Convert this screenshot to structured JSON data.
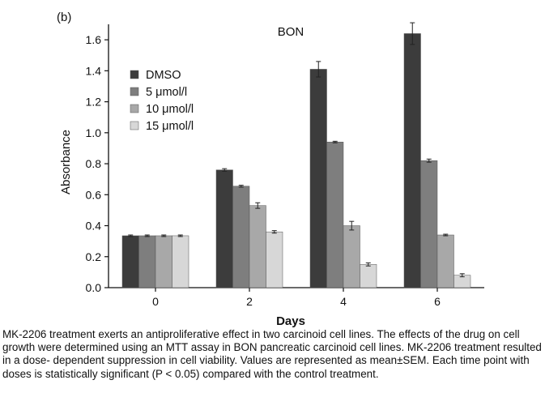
{
  "panel_label": "(b)",
  "caption": "MK-2206 treatment exerts an antiproliferative effect in two carcinoid cell lines. The effects of the drug on cell growth were determined using an MTT assay in BON pancreatic carcinoid cell lines. MK-2206 treatment resulted in a dose- dependent suppression in cell viability. Values are represented as mean±SEM. Each time point with doses is statistically significant (P < 0.05) compared with the control treatment.",
  "chart_data": {
    "type": "bar",
    "title": "BON",
    "xlabel": "Days",
    "ylabel": "Absorbance",
    "categories": [
      "0",
      "2",
      "4",
      "6"
    ],
    "ylim": [
      0,
      1.7
    ],
    "yticks": [
      "0.0",
      "0.2",
      "0.4",
      "0.6",
      "0.8",
      "1.0",
      "1.2",
      "1.4",
      "1.6"
    ],
    "grid": false,
    "legend_position": "top-left",
    "error_bars": "mean±SEM",
    "series": [
      {
        "name": "DMSO",
        "color": "#3c3c3c",
        "values": [
          0.335,
          0.76,
          1.41,
          1.64
        ],
        "errors": [
          0.005,
          0.008,
          0.05,
          0.07
        ]
      },
      {
        "name": "5 μmol/l",
        "color": "#7e7e7e",
        "values": [
          0.335,
          0.655,
          0.94,
          0.82
        ],
        "errors": [
          0.005,
          0.006,
          0.005,
          0.01
        ]
      },
      {
        "name": "10 μmol/l",
        "color": "#a8a8a8",
        "values": [
          0.335,
          0.53,
          0.4,
          0.34
        ],
        "errors": [
          0.005,
          0.018,
          0.028,
          0.005
        ]
      },
      {
        "name": "15 μmol/l",
        "color": "#d7d7d7",
        "values": [
          0.335,
          0.36,
          0.15,
          0.08
        ],
        "errors": [
          0.005,
          0.008,
          0.01,
          0.01
        ]
      }
    ]
  }
}
